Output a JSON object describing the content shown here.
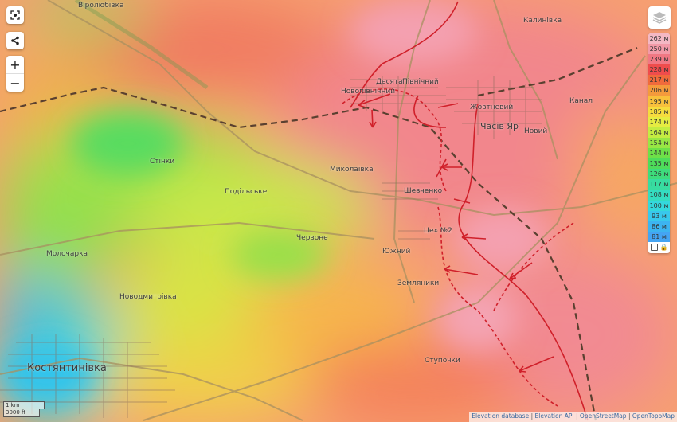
{
  "controls": {
    "fullscreen_icon": "fullscreen-icon",
    "share_icon": "share-icon",
    "zoom_in": "+",
    "zoom_out": "−"
  },
  "places": {
    "virolyubivka": "Віролюбівка",
    "kalynivka": "Калинівка",
    "desyata": "Десята",
    "pivnichnyi": "Північний",
    "novopivnichnyi": "Новопівнічний",
    "zhovtnevyi": "Жовтневий",
    "chasiv_yar": "Часів Яр",
    "novyi": "Новий",
    "kanal": "Канал",
    "stinky": "Стінки",
    "mykolaivka": "Миколаївка",
    "podilske": "Подільське",
    "shevchenko": "Шевченко",
    "chervone": "Червоне",
    "tsekh2": "Цех №2",
    "yuzhnyi": "Южний",
    "zemlyanky": "Земляники",
    "molocharka": "Молочарка",
    "novodmytrivka": "Новодмитрівка",
    "kostiantynivka": "Костянтинівка",
    "stupochky": "Ступочки"
  },
  "legend": {
    "entries": [
      {
        "label": "262 м",
        "color": "#f4b8c4"
      },
      {
        "label": "250 м",
        "color": "#f29aa8"
      },
      {
        "label": "239 м",
        "color": "#f07884"
      },
      {
        "label": "228 м",
        "color": "#ef4c4c"
      },
      {
        "label": "217 м",
        "color": "#f06a3c"
      },
      {
        "label": "206 м",
        "color": "#f49a3c"
      },
      {
        "label": "195 м",
        "color": "#f8c03c"
      },
      {
        "label": "185 м",
        "color": "#f6dc3e"
      },
      {
        "label": "174 м",
        "color": "#e6ec42"
      },
      {
        "label": "164 м",
        "color": "#c4ec42"
      },
      {
        "label": "154 м",
        "color": "#98e644"
      },
      {
        "label": "144 м",
        "color": "#6ee048"
      },
      {
        "label": "135 м",
        "color": "#4edc5a"
      },
      {
        "label": "126 м",
        "color": "#3edc7c"
      },
      {
        "label": "117 м",
        "color": "#38dca0"
      },
      {
        "label": "108 м",
        "color": "#34dcc0"
      },
      {
        "label": "100 м",
        "color": "#34d8dc"
      },
      {
        "label": "93 м",
        "color": "#38c8ec"
      },
      {
        "label": "86 м",
        "color": "#3cb4f0"
      },
      {
        "label": "81 м",
        "color": "#44a4f2"
      }
    ],
    "layers_icon": "layers-icon",
    "lock_icon": "lock-icon"
  },
  "scale": {
    "metric": "1 km",
    "imperial": "3000 ft"
  },
  "attribution": {
    "elevation_db": "Elevation database",
    "elevation_api": "Elevation API",
    "osm": "OpenStreetMap",
    "otm": "OpenTopoMap",
    "sep": "|"
  },
  "colors": {
    "front_line": "#d0202a",
    "railway": "#5a4030",
    "road": "#a89060"
  }
}
